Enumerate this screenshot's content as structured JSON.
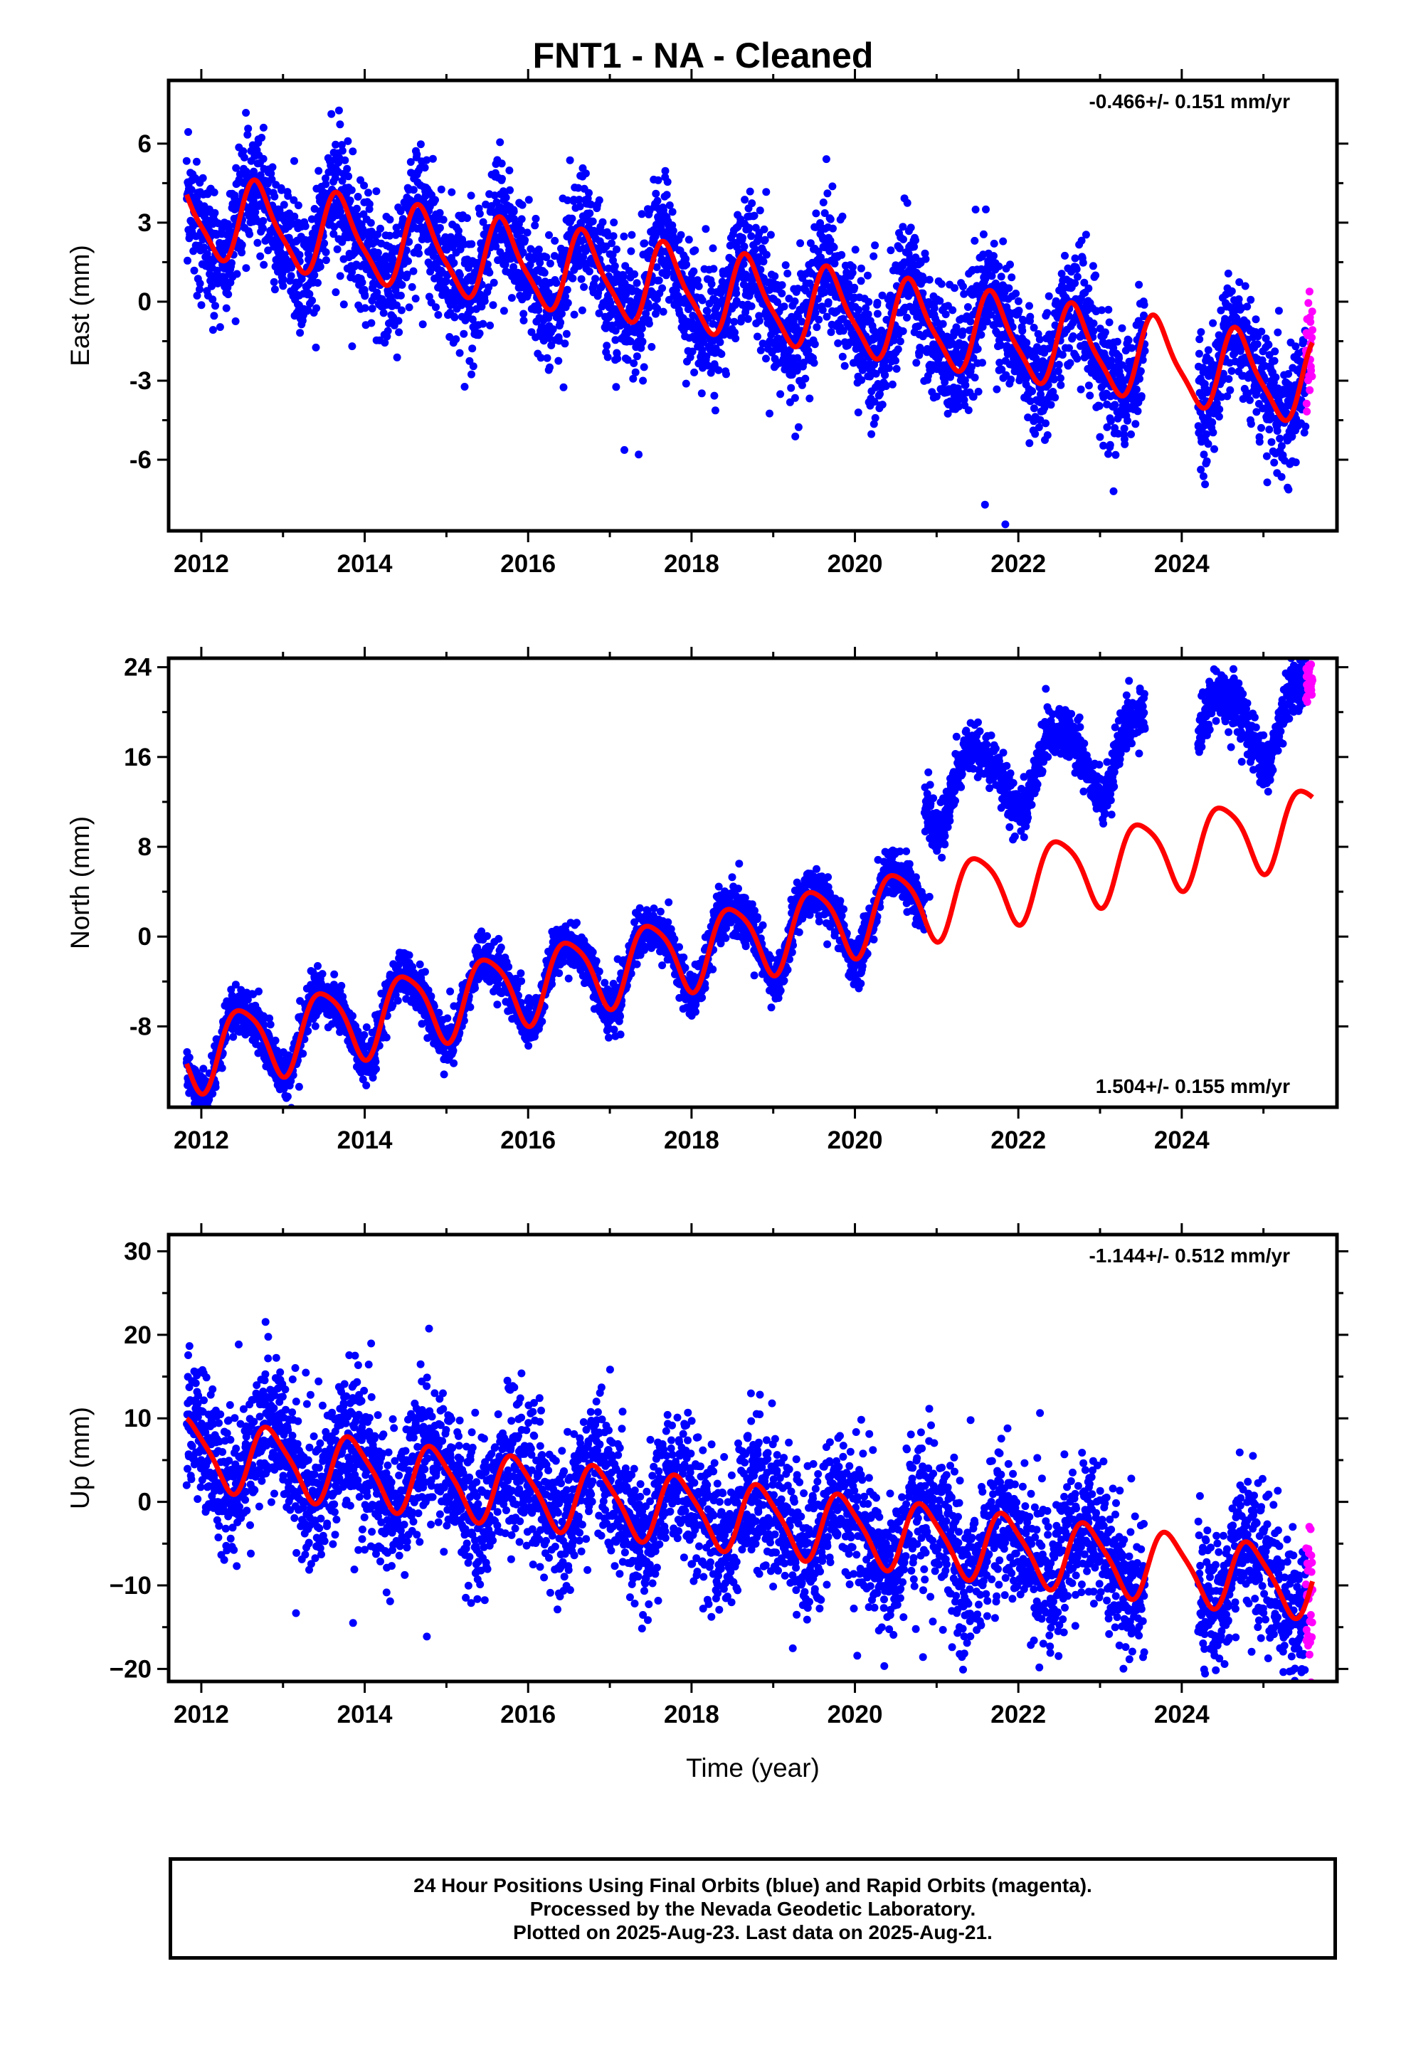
{
  "title": "FNT1  - NA - Cleaned",
  "x_axis_title": "Time (year)",
  "caption": {
    "line1": "24 Hour Positions Using Final Orbits (blue) and Rapid Orbits (magenta).",
    "line2": "Processed by the Nevada Geodetic Laboratory.",
    "line3": "Plotted on 2025-Aug-23. Last data on 2025-Aug-21."
  },
  "colors": {
    "final_orbits": "#0000ff",
    "rapid_orbits": "#ff00ff",
    "model_fit": "#ff0000",
    "frame": "#000000"
  },
  "chart_data": [
    {
      "type": "scatter",
      "component": "east",
      "ylabel": "East (mm)",
      "annotation": "-0.466+/- 0.151 mm/yr",
      "xlim": [
        2011.6,
        2025.9
      ],
      "ylim": [
        -8.7,
        8.4
      ],
      "x_ticks": [
        2012,
        2014,
        2016,
        2018,
        2020,
        2022,
        2024
      ],
      "y_ticks": [
        6,
        3,
        0,
        -3,
        -6
      ],
      "y_tick_labels": [
        "6",
        "3",
        "0",
        "-3",
        "-6"
      ],
      "grid": false,
      "data_start": 2011.82,
      "data_end": 2025.6,
      "gaps": [
        [
          2023.55,
          2024.2
        ]
      ],
      "rapid_start": 2025.52,
      "trend": {
        "offset": 3.3,
        "rate": -0.466,
        "annual_amp": 1.5,
        "annual_peak": 0.7,
        "semiannual_amp": 0.35,
        "semiannual_phase": 0.1,
        "steps": [
          {
            "t": 2020.85,
            "dy": 0.0
          }
        ]
      },
      "noise_std": 1.2,
      "series": [
        {
          "name": "Final Orbits",
          "color": "#0000ff",
          "kind": "points"
        },
        {
          "name": "Rapid Orbits",
          "color": "#ff00ff",
          "kind": "points"
        },
        {
          "name": "Model",
          "color": "#ff0000",
          "kind": "line"
        }
      ]
    },
    {
      "type": "scatter",
      "component": "north",
      "ylabel": "North (mm)",
      "annotation": "1.504+/- 0.155 mm/yr",
      "xlim": [
        2011.6,
        2025.9
      ],
      "ylim": [
        -15.2,
        24.8
      ],
      "x_ticks": [
        2012,
        2014,
        2016,
        2018,
        2020,
        2022,
        2024
      ],
      "y_ticks": [
        24,
        16,
        8,
        0,
        -8
      ],
      "y_tick_labels": [
        "24",
        "16",
        "8",
        "0",
        "-8"
      ],
      "grid": false,
      "data_start": 2011.82,
      "data_end": 2025.6,
      "gaps": [
        [
          2023.55,
          2024.2
        ]
      ],
      "rapid_start": 2025.52,
      "trend": {
        "offset": -10.5,
        "rate": 1.504,
        "annual_amp": 3.3,
        "annual_peak": 0.5,
        "semiannual_amp": 0.6,
        "semiannual_phase": 0.3,
        "steps": [
          {
            "t": 2020.85,
            "dy": 10.0
          }
        ]
      },
      "model_no_step": true,
      "noise_std": 1.1,
      "series": [
        {
          "name": "Final Orbits",
          "color": "#0000ff",
          "kind": "points"
        },
        {
          "name": "Rapid Orbits",
          "color": "#ff00ff",
          "kind": "points"
        },
        {
          "name": "Model",
          "color": "#ff0000",
          "kind": "line"
        }
      ]
    },
    {
      "type": "scatter",
      "component": "up",
      "ylabel": "Up (mm)",
      "annotation": "-1.144+/- 0.512 mm/yr",
      "xlim": [
        2011.6,
        2025.9
      ],
      "ylim": [
        -21.5,
        32.0
      ],
      "x_ticks": [
        2012,
        2014,
        2016,
        2018,
        2020,
        2022,
        2024
      ],
      "y_ticks": [
        30,
        20,
        10,
        0,
        -10,
        -20
      ],
      "y_tick_labels": [
        "30",
        "20",
        "10",
        "0",
        "−10",
        "−20"
      ],
      "grid": false,
      "data_start": 2011.82,
      "data_end": 2025.6,
      "gaps": [
        [
          2023.55,
          2024.2
        ]
      ],
      "rapid_start": 2025.52,
      "trend": {
        "offset": 6.0,
        "rate": -1.144,
        "annual_amp": 4.0,
        "annual_peak": 0.85,
        "semiannual_amp": 0.8,
        "semiannual_phase": 0.2,
        "steps": [
          {
            "t": 2020.85,
            "dy": 0.0
          }
        ]
      },
      "noise_std": 4.3,
      "series": [
        {
          "name": "Final Orbits",
          "color": "#0000ff",
          "kind": "points"
        },
        {
          "name": "Rapid Orbits",
          "color": "#ff00ff",
          "kind": "points"
        },
        {
          "name": "Model",
          "color": "#ff0000",
          "kind": "line"
        }
      ]
    }
  ]
}
